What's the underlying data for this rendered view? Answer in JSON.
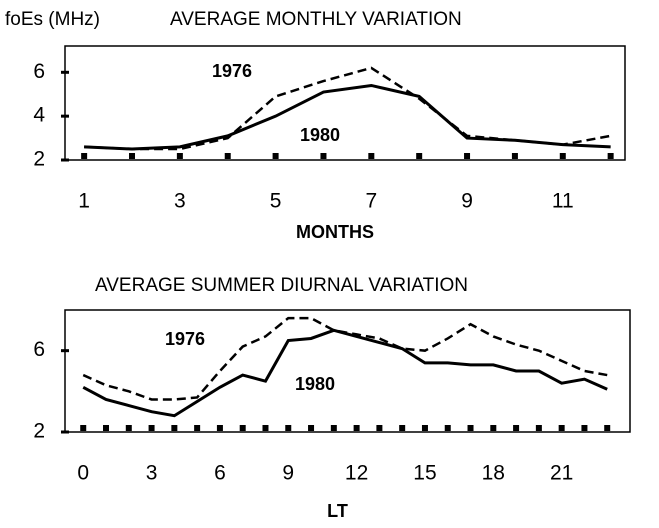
{
  "chart_data": [
    {
      "type": "line",
      "title": "AVERAGE MONTHLY VARIATION",
      "ylabel": "foEs (MHz)",
      "xlabel": "MONTHS",
      "x": [
        1,
        2,
        3,
        4,
        5,
        6,
        7,
        8,
        9,
        10,
        11,
        12
      ],
      "series": [
        {
          "name": "1976",
          "color": "#000000",
          "dash": true,
          "values": [
            2.6,
            2.5,
            2.5,
            3.0,
            4.9,
            5.6,
            6.2,
            4.8,
            3.1,
            2.9,
            2.7,
            3.1
          ]
        },
        {
          "name": "1980",
          "color": "#000000",
          "dash": false,
          "values": [
            2.6,
            2.5,
            2.6,
            3.1,
            4.0,
            5.1,
            5.4,
            4.9,
            3.0,
            2.9,
            2.7,
            2.6
          ]
        }
      ],
      "xlim": [
        0.6,
        12.3
      ],
      "xticks": [
        1,
        3,
        5,
        7,
        9,
        11
      ],
      "ylim": [
        2,
        7.2
      ],
      "yticks": [
        2,
        4,
        6
      ]
    },
    {
      "type": "line",
      "title": "AVERAGE SUMMER DIURNAL VARIATION",
      "xlabel": "LT",
      "x": [
        0,
        1,
        2,
        3,
        4,
        5,
        6,
        7,
        8,
        9,
        10,
        11,
        12,
        13,
        14,
        15,
        16,
        17,
        18,
        19,
        20,
        21,
        22,
        23
      ],
      "series": [
        {
          "name": "1976",
          "color": "#000000",
          "dash": true,
          "values": [
            4.8,
            4.3,
            4.0,
            3.6,
            3.6,
            3.7,
            5.0,
            6.2,
            6.7,
            7.6,
            7.6,
            7.0,
            6.8,
            6.6,
            6.1,
            6.0,
            6.6,
            7.3,
            6.7,
            6.3,
            6.0,
            5.5,
            5.0,
            4.8
          ]
        },
        {
          "name": "1980",
          "color": "#000000",
          "dash": false,
          "values": [
            4.2,
            3.6,
            3.3,
            3.0,
            2.8,
            3.5,
            4.2,
            4.8,
            4.5,
            6.5,
            6.6,
            7.0,
            6.7,
            6.4,
            6.1,
            5.4,
            5.4,
            5.3,
            5.3,
            5.0,
            5.0,
            4.4,
            4.6,
            4.1
          ]
        }
      ],
      "xlim": [
        -0.8,
        24
      ],
      "xticks": [
        0,
        3,
        6,
        9,
        12,
        15,
        18,
        21
      ],
      "ylim": [
        2,
        8
      ],
      "yticks": [
        2,
        6
      ]
    }
  ]
}
